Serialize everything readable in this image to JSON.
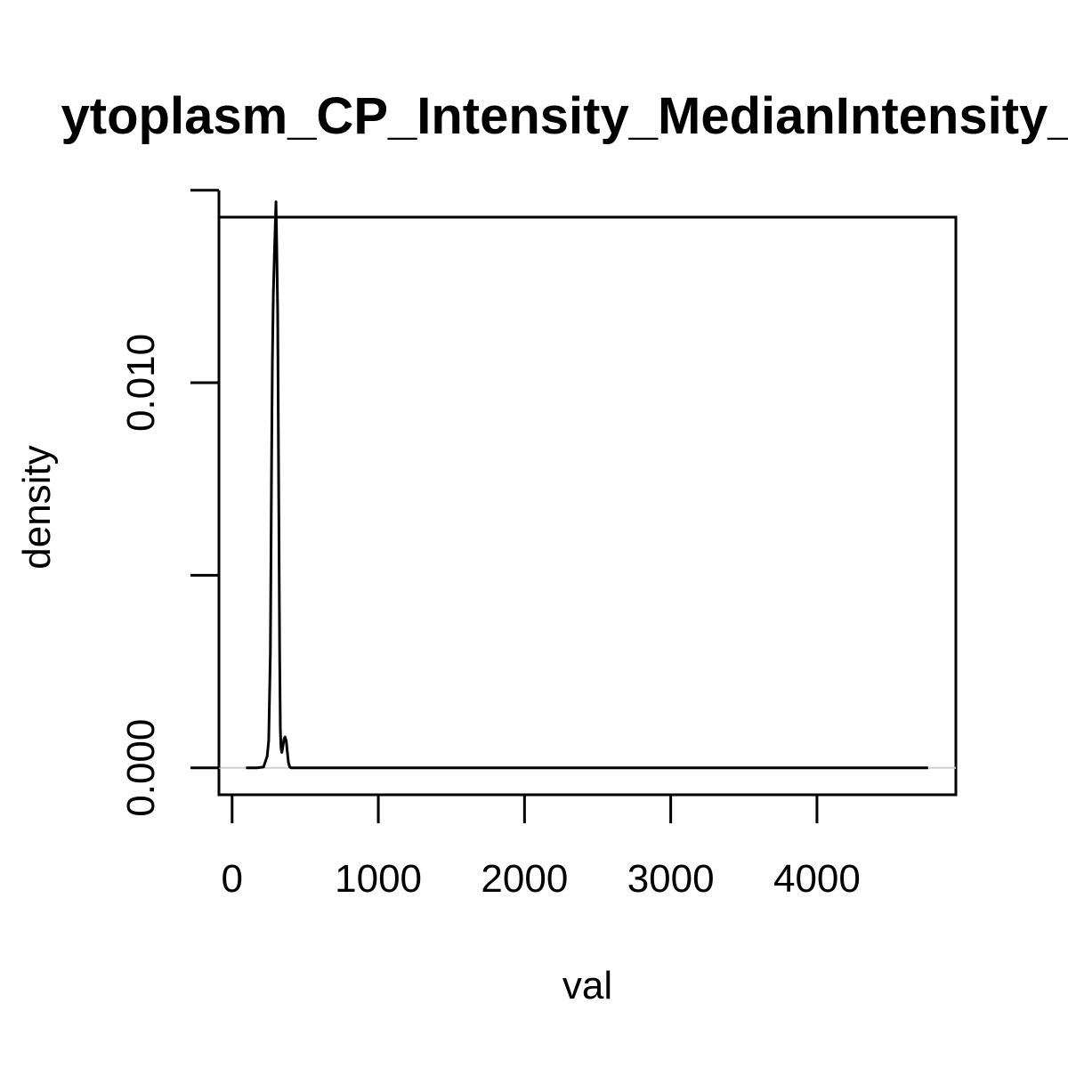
{
  "chart_data": {
    "type": "line",
    "title": "ytoplasm_CP_Intensity_MedianIntensity_K",
    "xlabel": "val",
    "ylabel": "density",
    "xlim": [
      -90,
      4950
    ],
    "ylim": [
      -0.0007,
      0.0143
    ],
    "x_ticks": [
      0,
      1000,
      2000,
      3000,
      4000
    ],
    "x_tick_labels": [
      "0",
      "1000",
      "2000",
      "3000",
      "4000"
    ],
    "y_ticks": [
      0.0,
      0.005,
      0.01,
      0.015
    ],
    "y_tick_labels": [
      "0.000",
      "",
      "0.010",
      ""
    ],
    "grid": false,
    "baseline": 0,
    "series": [
      {
        "x": [
          95,
          170,
          215,
          240,
          250,
          262,
          270,
          275,
          282,
          290,
          300,
          305,
          312,
          318,
          325,
          330,
          335,
          340,
          345,
          355,
          362,
          370,
          378,
          385,
          392,
          398,
          405,
          420,
          440,
          500,
          1000,
          1500,
          2000,
          2500,
          3000,
          3500,
          4000,
          4500,
          4760
        ],
        "y": [
          0.0,
          0.0,
          2e-05,
          0.0003,
          0.0007,
          0.003,
          0.0078,
          0.0105,
          0.0123,
          0.0134,
          0.0147,
          0.0136,
          0.0118,
          0.0078,
          0.003,
          0.001,
          0.0005,
          0.0004,
          0.0005,
          0.00075,
          0.0008,
          0.0007,
          0.0004,
          0.00015,
          4e-05,
          1e-05,
          0.0,
          0.0,
          0.0,
          0.0,
          0.0,
          0.0,
          0.0,
          0.0,
          0.0,
          0.0,
          0.0,
          0.0,
          0.0
        ]
      }
    ]
  }
}
